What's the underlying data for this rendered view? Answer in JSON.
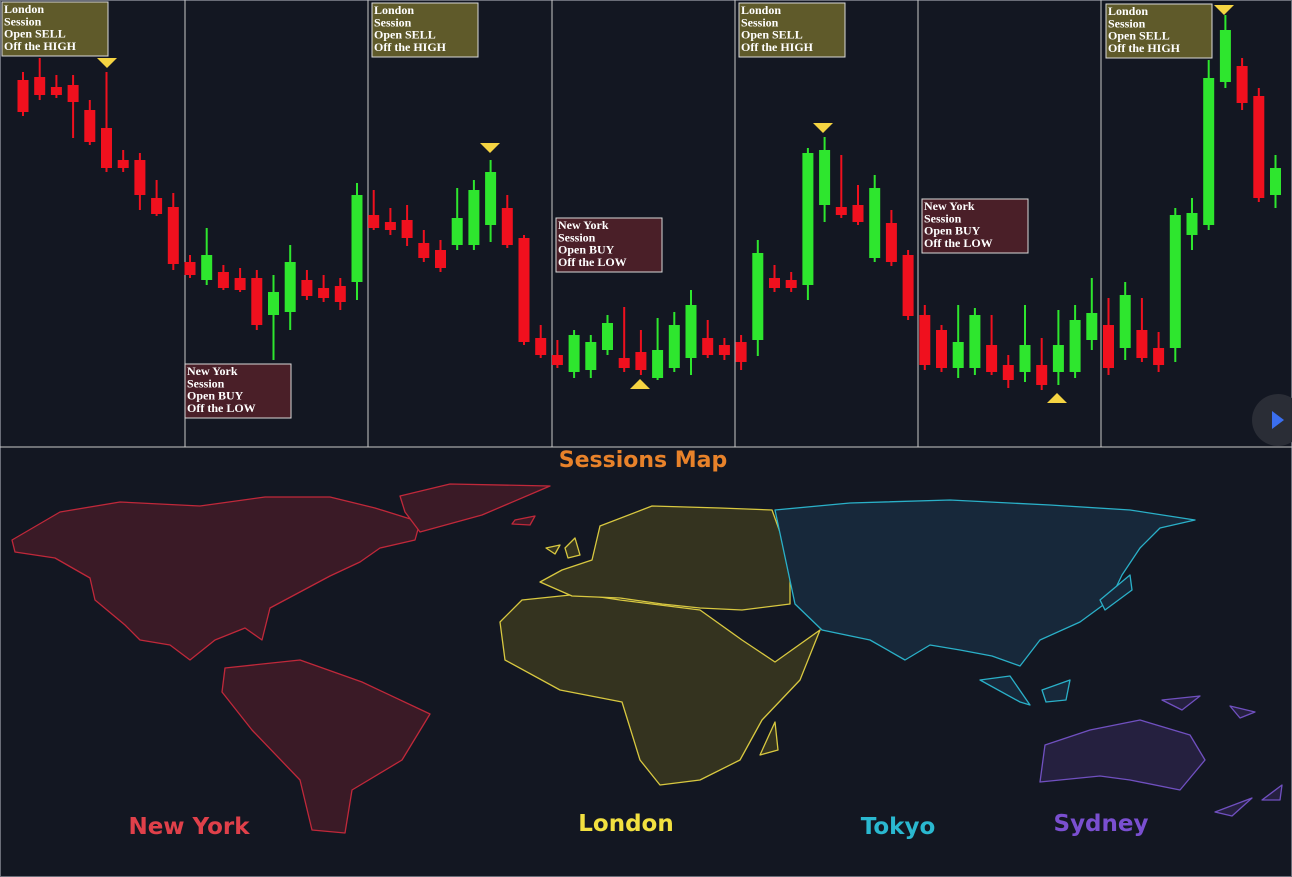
{
  "chart_data": {
    "type": "candlestick",
    "up_color": "#2ee62e",
    "down_color": "#f0101e",
    "open": [
      370,
      373,
      363,
      365,
      340,
      322,
      290,
      290,
      252,
      243,
      188,
      170,
      178,
      172,
      172,
      135,
      138,
      170,
      162,
      164,
      168,
      235,
      228,
      230,
      207,
      200,
      205,
      205,
      225,
      242,
      212,
      112,
      95,
      78,
      80,
      100,
      92,
      98,
      72,
      82,
      92,
      112,
      105,
      108,
      110,
      172,
      170,
      165,
      245,
      243,
      245,
      192,
      227,
      195,
      135,
      120,
      82,
      82,
      105,
      85,
      78,
      85,
      78,
      78,
      110,
      125,
      102,
      120,
      102,
      102,
      215,
      225,
      368,
      384,
      354,
      255
    ],
    "high": [
      378,
      392,
      375,
      375,
      350,
      378,
      300,
      297,
      270,
      257,
      195,
      222,
      185,
      182,
      180,
      175,
      205,
      180,
      175,
      172,
      267,
      260,
      242,
      245,
      220,
      210,
      262,
      270,
      290,
      255,
      215,
      125,
      110,
      120,
      115,
      135,
      143,
      120,
      132,
      138,
      160,
      130,
      112,
      115,
      210,
      185,
      178,
      302,
      313,
      295,
      265,
      275,
      240,
      200,
      145,
      125,
      145,
      142,
      135,
      95,
      145,
      112,
      140,
      145,
      172,
      152,
      168,
      152,
      118,
      242,
      252,
      390,
      435,
      392,
      362,
      295
    ],
    "low": [
      334,
      350,
      352,
      312,
      305,
      278,
      278,
      240,
      234,
      180,
      172,
      165,
      160,
      158,
      120,
      90,
      120,
      150,
      148,
      140,
      150,
      220,
      215,
      204,
      188,
      178,
      200,
      200,
      208,
      202,
      105,
      92,
      82,
      72,
      72,
      95,
      78,
      75,
      70,
      78,
      75,
      92,
      90,
      80,
      94,
      158,
      158,
      150,
      228,
      232,
      225,
      188,
      184,
      130,
      80,
      78,
      72,
      75,
      75,
      62,
      68,
      60,
      65,
      72,
      100,
      75,
      90,
      88,
      78,
      88,
      200,
      220,
      362,
      340,
      248,
      242
    ],
    "close": [
      338,
      355,
      355,
      348,
      308,
      282,
      282,
      255,
      236,
      186,
      175,
      195,
      162,
      160,
      125,
      158,
      188,
      154,
      152,
      148,
      255,
      222,
      220,
      212,
      192,
      182,
      232,
      260,
      278,
      205,
      108,
      95,
      85,
      115,
      108,
      127,
      82,
      80,
      100,
      125,
      145,
      95,
      95,
      88,
      197,
      162,
      162,
      297,
      300,
      235,
      228,
      262,
      188,
      134,
      85,
      82,
      108,
      135,
      78,
      70,
      105,
      65,
      105,
      130,
      137,
      82,
      155,
      92,
      85,
      235,
      237,
      372,
      420,
      347,
      252,
      282
    ]
  },
  "annotations": [
    [
      "London",
      "Session",
      "Open SELL",
      "Off the HIGH"
    ],
    [
      "New York",
      "Session",
      "Open BUY",
      "Off the LOW"
    ],
    [
      "London",
      "Session",
      "Open SELL",
      "Off the HIGH"
    ],
    [
      "New York",
      "Session",
      "Open BUY",
      "Off the LOW"
    ],
    [
      "London",
      "Session",
      "Open SELL",
      "Off the HIGH"
    ],
    [
      "New York",
      "Session",
      "Open BUY",
      "Off the LOW"
    ],
    [
      "London",
      "Session",
      "Open SELL",
      "Off the HIGH"
    ]
  ],
  "map": {
    "title": "Sessions Map",
    "labels": [
      "New York",
      "London",
      "Tokyo",
      "Sydney"
    ]
  }
}
